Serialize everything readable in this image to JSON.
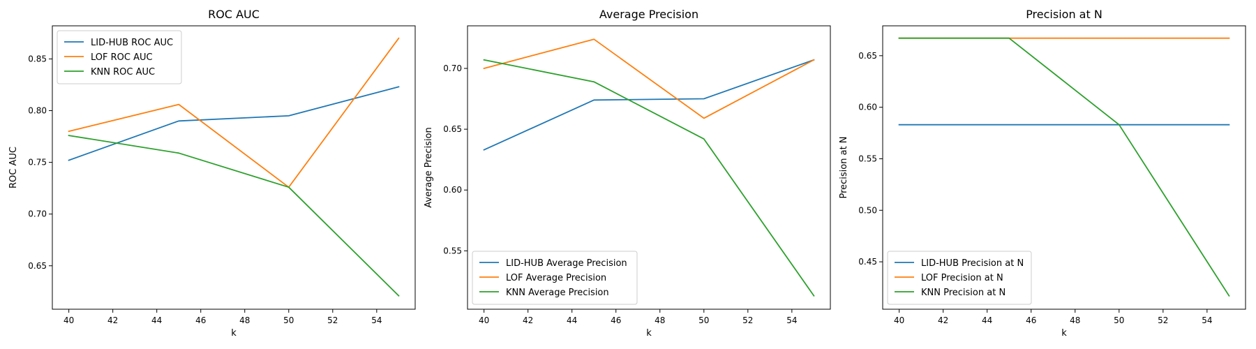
{
  "chart_data": [
    {
      "type": "line",
      "title": "ROC AUC",
      "xlabel": "k",
      "ylabel": "ROC AUC",
      "x": [
        40,
        45,
        50,
        55
      ],
      "xlim": [
        39.25,
        55.75
      ],
      "ylim": [
        0.608,
        0.882
      ],
      "xticks": [
        40,
        42,
        44,
        46,
        48,
        50,
        52,
        54
      ],
      "yticks": [
        0.65,
        0.7,
        0.75,
        0.8,
        0.85
      ],
      "grid": false,
      "legend": "top-left",
      "series": [
        {
          "name": "LID-HUB ROC AUC",
          "color": "#1f77b4",
          "values": [
            0.752,
            0.79,
            0.795,
            0.823
          ]
        },
        {
          "name": "LOF ROC AUC",
          "color": "#ff7f0e",
          "values": [
            0.78,
            0.806,
            0.726,
            0.87
          ]
        },
        {
          "name": "KNN ROC AUC",
          "color": "#2ca02c",
          "values": [
            0.776,
            0.759,
            0.726,
            0.621
          ]
        }
      ]
    },
    {
      "type": "line",
      "title": "Average Precision",
      "xlabel": "k",
      "ylabel": "Average Precision",
      "x": [
        40,
        45,
        50,
        55
      ],
      "xlim": [
        39.25,
        55.75
      ],
      "ylim": [
        0.502,
        0.735
      ],
      "xticks": [
        40,
        42,
        44,
        46,
        48,
        50,
        52,
        54
      ],
      "yticks": [
        0.55,
        0.6,
        0.65,
        0.7
      ],
      "grid": false,
      "legend": "bottom-left",
      "series": [
        {
          "name": "LID-HUB Average Precision",
          "color": "#1f77b4",
          "values": [
            0.633,
            0.674,
            0.675,
            0.707
          ]
        },
        {
          "name": "LOF Average Precision",
          "color": "#ff7f0e",
          "values": [
            0.7,
            0.724,
            0.659,
            0.707
          ]
        },
        {
          "name": "KNN Average Precision",
          "color": "#2ca02c",
          "values": [
            0.707,
            0.689,
            0.642,
            0.513
          ]
        }
      ]
    },
    {
      "type": "line",
      "title": "Precision at N",
      "xlabel": "k",
      "ylabel": "Precision at N",
      "x": [
        40,
        45,
        50,
        55
      ],
      "xlim": [
        39.25,
        55.75
      ],
      "ylim": [
        0.404,
        0.679
      ],
      "xticks": [
        40,
        42,
        44,
        46,
        48,
        50,
        52,
        54
      ],
      "yticks": [
        0.45,
        0.5,
        0.55,
        0.6,
        0.65
      ],
      "grid": false,
      "legend": "bottom-left",
      "series": [
        {
          "name": "LID-HUB Precision at N",
          "color": "#1f77b4",
          "values": [
            0.583,
            0.583,
            0.583,
            0.583
          ]
        },
        {
          "name": "LOF Precision at N",
          "color": "#ff7f0e",
          "values": [
            0.667,
            0.667,
            0.667,
            0.667
          ]
        },
        {
          "name": "KNN Precision at N",
          "color": "#2ca02c",
          "values": [
            0.667,
            0.667,
            0.583,
            0.417
          ]
        }
      ]
    }
  ]
}
